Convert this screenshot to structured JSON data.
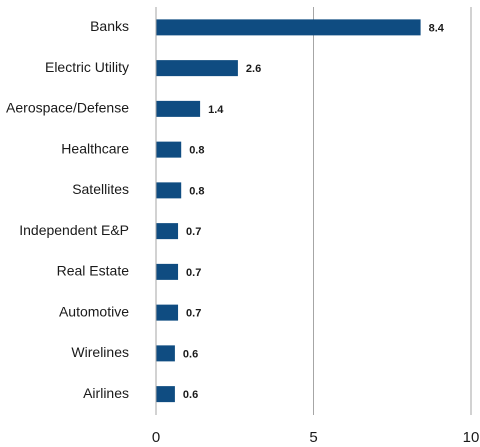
{
  "chart_data": {
    "type": "bar",
    "orientation": "horizontal",
    "categories": [
      "Banks",
      "Electric Utility",
      "Aerospace/Defense",
      "Healthcare",
      "Satellites",
      "Independent E&P",
      "Real Estate",
      "Automotive",
      "Wirelines",
      "Airlines"
    ],
    "values": [
      8.4,
      2.6,
      1.4,
      0.8,
      0.8,
      0.7,
      0.7,
      0.7,
      0.6,
      0.6
    ],
    "value_labels": [
      "8.4",
      "2.6",
      "1.4",
      "0.8",
      "0.8",
      "0.7",
      "0.7",
      "0.7",
      "0.6",
      "0.6"
    ],
    "xlim": [
      0,
      10
    ],
    "xticks": [
      0,
      5,
      10
    ],
    "xtick_labels": [
      "0",
      "5",
      "10"
    ],
    "title": "",
    "xlabel": "",
    "ylabel": "",
    "grid": "vertical",
    "legend": "none",
    "bar_color": "#0f4c81"
  }
}
